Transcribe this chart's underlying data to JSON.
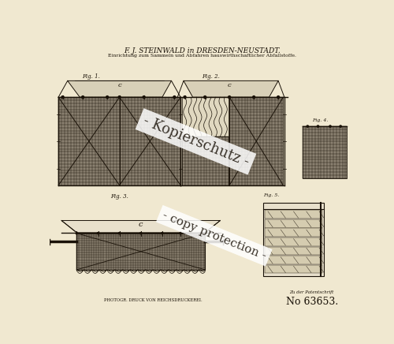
{
  "bg_color": "#f0e8d0",
  "line_color": "#1a1208",
  "fill_dark": "#888070",
  "fill_med": "#b0a890",
  "fill_light": "#d8d0b8",
  "fill_panel": "#c8c0a8",
  "title_line1": "F. J. STEINWALD in DRESDEN-NEUSTADT.",
  "title_line2": "Einrichtung zum Sammeln und Abfahren hauswirthschaftlicher Abfallstoffe.",
  "patent_label": "Zu der Patentschrift",
  "patent_number": "No 63653.",
  "bottom_label": "PHOTOGR. DRUCK VON REICHSDRUCKEREI.",
  "watermark1": "- Kopierschutz -",
  "watermark2": "- copy protection -",
  "fig_labels": [
    "Fig. 1.",
    "Fig. 2.",
    "Fig. 3.",
    "Fig. 4.",
    "Fig. 5."
  ]
}
